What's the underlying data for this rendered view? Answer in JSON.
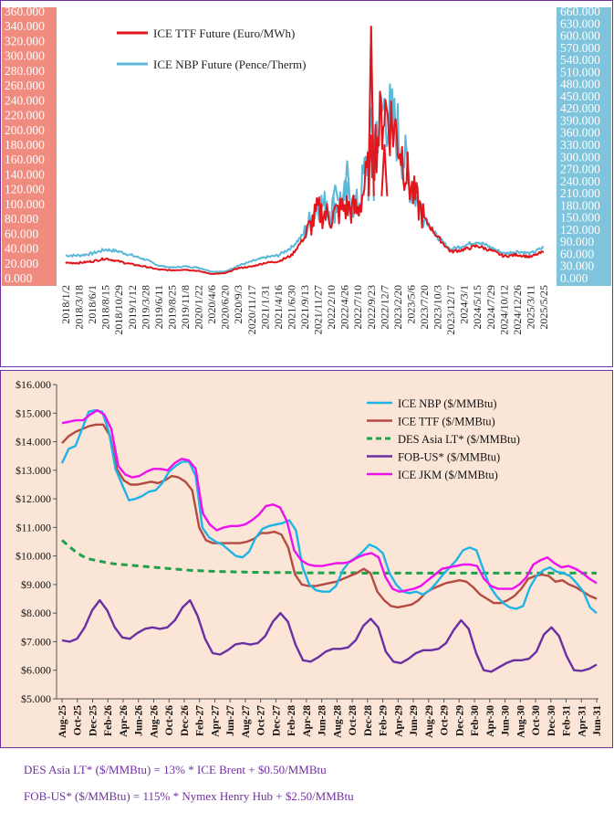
{
  "chart_data": [
    {
      "type": "line",
      "left_axis_ticks": [
        "360.000",
        "340.000",
        "320.000",
        "300.000",
        "280.000",
        "260.000",
        "240.000",
        "220.000",
        "200.000",
        "180.000",
        "160.000",
        "140.000",
        "120.000",
        "100.000",
        "80.000",
        "60.000",
        "40.000",
        "20.000",
        "0.000"
      ],
      "right_axis_ticks": [
        "660.000",
        "630.000",
        "600.000",
        "570.000",
        "540.000",
        "510.000",
        "480.000",
        "450.000",
        "420.000",
        "390.000",
        "360.000",
        "330.000",
        "300.000",
        "270.000",
        "240.000",
        "210.000",
        "180.000",
        "150.000",
        "120.000",
        "90.000",
        "60.000",
        "30.000",
        "0.000"
      ],
      "ylim_left": [
        0,
        360
      ],
      "ylim_right": [
        0,
        660
      ],
      "x_labels": [
        "2018/1/2",
        "2018/3/18",
        "2018/6/1",
        "2018/8/15",
        "2018/10/29",
        "2019/1/12",
        "2019/3/28",
        "2019/6/11",
        "2019/8/25",
        "2019/11/8",
        "2020/1/22",
        "2020/4/6",
        "2020/6/20",
        "2020/9/3",
        "2020/11/17",
        "2021/1/31",
        "2021/4/16",
        "2021/6/30",
        "2021/9/13",
        "2021/11/27",
        "2022/2/10",
        "2022/4/26",
        "2022/7/10",
        "2022/9/23",
        "2022/12/7",
        "2023/2/20",
        "2023/5/6",
        "2023/7/20",
        "2023/10/3",
        "2023/12/17",
        "2024/3/1",
        "2024/5/15",
        "2024/7/29",
        "2024/10/12",
        "2024/12/26",
        "2025/3/11",
        "2025/5/25"
      ],
      "series": [
        {
          "name": "ICE TTF Future (Euro/MWh)",
          "axis": "left",
          "color": "#e0161c",
          "points": [
            [
              0,
              20
            ],
            [
              1,
              20
            ],
            [
              2,
              22
            ],
            [
              3,
              26
            ],
            [
              4,
              22
            ],
            [
              5,
              18
            ],
            [
              6,
              15
            ],
            [
              7,
              11
            ],
            [
              8,
              10
            ],
            [
              9,
              11
            ],
            [
              10,
              9
            ],
            [
              11,
              5
            ],
            [
              12,
              6
            ],
            [
              13,
              13
            ],
            [
              14,
              15
            ],
            [
              15,
              20
            ],
            [
              16,
              22
            ],
            [
              17,
              30
            ],
            [
              18,
              55
            ],
            [
              19,
              90
            ],
            [
              20,
              82
            ],
            [
              21,
              95
            ],
            [
              22,
              90
            ],
            [
              23,
              155
            ],
            [
              24,
              230
            ],
            [
              25,
              190
            ],
            [
              26,
              120
            ],
            [
              27,
              80
            ],
            [
              28,
              55
            ],
            [
              29,
              35
            ],
            [
              30,
              38
            ],
            [
              31,
              43
            ],
            [
              32,
              37
            ],
            [
              33,
              29
            ],
            [
              34,
              31
            ],
            [
              35,
              28
            ],
            [
              36,
              35
            ]
          ]
        },
        {
          "name": "ICE NBP Future (Pence/Therm)",
          "axis": "right",
          "color": "#5cb8d8",
          "points": [
            [
              0,
              55
            ],
            [
              1,
              55
            ],
            [
              2,
              60
            ],
            [
              3,
              70
            ],
            [
              4,
              65
            ],
            [
              5,
              55
            ],
            [
              6,
              45
            ],
            [
              7,
              30
            ],
            [
              8,
              25
            ],
            [
              9,
              28
            ],
            [
              10,
              25
            ],
            [
              11,
              15
            ],
            [
              12,
              15
            ],
            [
              13,
              30
            ],
            [
              14,
              40
            ],
            [
              15,
              50
            ],
            [
              16,
              55
            ],
            [
              17,
              75
            ],
            [
              18,
              110
            ],
            [
              19,
              185
            ],
            [
              20,
              170
            ],
            [
              21,
              200
            ],
            [
              22,
              175
            ],
            [
              23,
              340
            ],
            [
              24,
              420
            ],
            [
              25,
              360
            ],
            [
              26,
              230
            ],
            [
              27,
              150
            ],
            [
              28,
              100
            ],
            [
              29,
              70
            ],
            [
              30,
              80
            ],
            [
              31,
              90
            ],
            [
              32,
              75
            ],
            [
              33,
              60
            ],
            [
              34,
              65
            ],
            [
              35,
              60
            ],
            [
              36,
              75
            ]
          ]
        }
      ],
      "legend": [
        "ICE TTF Future (Euro/MWh)",
        "ICE NBP Future (Pence/Therm)"
      ],
      "legend_placement": "top-left",
      "grid": false
    },
    {
      "type": "line",
      "y_ticks": [
        "$16.000",
        "$15.000",
        "$14.000",
        "$13.000",
        "$12.000",
        "$11.000",
        "$10.000",
        "$9.000",
        "$8.000",
        "$7.000",
        "$6.000",
        "$5.000"
      ],
      "ylim": [
        5,
        16
      ],
      "x_labels": [
        "Aug-25",
        "Oct-25",
        "Dec-25",
        "Feb-26",
        "Apr-26",
        "Jun-26",
        "Aug-26",
        "Oct-26",
        "Dec-26",
        "Feb-27",
        "Apr-27",
        "Jun-27",
        "Aug-27",
        "Oct-27",
        "Dec-27",
        "Feb-28",
        "Apr-28",
        "Jun-28",
        "Aug-28",
        "Oct-28",
        "Dec-28",
        "Feb-29",
        "Apr-29",
        "Jun-29",
        "Aug-29",
        "Oct-29",
        "Dec-29",
        "Feb-30",
        "Apr-30",
        "Jun-30",
        "Aug-30",
        "Oct-30",
        "Dec-30",
        "Feb-31",
        "Apr-31",
        "Jun-31"
      ],
      "series": [
        {
          "name": "ICE NBP ($/MMBtu)",
          "color": "#1fb4e6",
          "dash": false,
          "values": [
            13.25,
            13.75,
            13.85,
            14.45,
            15.05,
            15.1,
            15.05,
            14.35,
            13.05,
            12.5,
            11.95,
            12.0,
            12.1,
            12.25,
            12.3,
            12.55,
            12.95,
            13.15,
            13.3,
            13.3,
            12.8,
            11.0,
            10.65,
            10.5,
            10.4,
            10.2,
            10.0,
            9.95,
            10.15,
            10.65,
            10.95,
            11.05,
            11.1,
            11.15,
            11.25,
            10.9,
            9.6,
            9.0,
            8.8,
            8.75,
            8.75,
            8.95,
            9.5,
            9.8,
            9.95,
            10.15,
            10.4,
            10.3,
            10.1,
            9.4,
            9.0,
            8.75,
            8.7,
            8.75,
            8.65,
            8.8,
            9.05,
            9.35,
            9.6,
            9.85,
            10.2,
            10.3,
            10.2,
            9.55,
            8.95,
            8.6,
            8.35,
            8.2,
            8.15,
            8.25,
            8.9,
            9.3,
            9.5,
            9.6,
            9.45,
            9.4,
            9.3,
            9.05,
            8.75,
            8.2,
            8.0
          ]
        },
        {
          "name": "ICE TTF ($/MMBtu)",
          "color": "#b54a40",
          "dash": false,
          "values": [
            13.95,
            14.2,
            14.35,
            14.45,
            14.55,
            14.6,
            14.6,
            14.2,
            13.05,
            12.65,
            12.5,
            12.5,
            12.55,
            12.6,
            12.55,
            12.65,
            12.8,
            12.75,
            12.6,
            12.3,
            11.0,
            10.55,
            10.45,
            10.45,
            10.45,
            10.45,
            10.45,
            10.5,
            10.6,
            10.8,
            10.8,
            10.85,
            10.75,
            10.3,
            9.35,
            9.0,
            8.95,
            8.95,
            9.0,
            9.05,
            9.1,
            9.2,
            9.3,
            9.4,
            9.55,
            9.4,
            8.75,
            8.45,
            8.25,
            8.2,
            8.25,
            8.3,
            8.45,
            8.7,
            8.85,
            8.95,
            9.05,
            9.1,
            9.15,
            9.1,
            8.9,
            8.65,
            8.5,
            8.35,
            8.35,
            8.45,
            8.6,
            8.85,
            9.2,
            9.3,
            9.35,
            9.3,
            9.1,
            9.15,
            9.0,
            8.9,
            8.75,
            8.6,
            8.5
          ]
        },
        {
          "name": "DES Asia LT* ($/MMBtu)",
          "color": "#1fa04a",
          "dash": true,
          "values": [
            10.55,
            10.35,
            10.15,
            10.0,
            9.9,
            9.85,
            9.8,
            9.75,
            9.72,
            9.7,
            9.68,
            9.66,
            9.64,
            9.62,
            9.6,
            9.58,
            9.56,
            9.54,
            9.52,
            9.5,
            9.49,
            9.48,
            9.47,
            9.46,
            9.45,
            9.45,
            9.44,
            9.44,
            9.43,
            9.43,
            9.43,
            9.42,
            9.42,
            9.42,
            9.42,
            9.41,
            9.41,
            9.41,
            9.41,
            9.41,
            9.41,
            9.41,
            9.41,
            9.41,
            9.41,
            9.4,
            9.4,
            9.4,
            9.4,
            9.4,
            9.4,
            9.4,
            9.4,
            9.4,
            9.4,
            9.4,
            9.4,
            9.4,
            9.4,
            9.4,
            9.4,
            9.4,
            9.4,
            9.4,
            9.4,
            9.4,
            9.4,
            9.4,
            9.4,
            9.4,
            9.4,
            9.4,
            9.4,
            9.4,
            9.4,
            9.4,
            9.4,
            9.4,
            9.4,
            9.4,
            9.4
          ]
        },
        {
          "name": "FOB-US* ($/MMBtu)",
          "color": "#6a2fa3",
          "dash": false,
          "values": [
            7.05,
            7.0,
            7.1,
            7.5,
            8.1,
            8.45,
            8.1,
            7.5,
            7.15,
            7.1,
            7.3,
            7.45,
            7.5,
            7.45,
            7.5,
            7.75,
            8.2,
            8.45,
            7.9,
            7.1,
            6.6,
            6.55,
            6.7,
            6.9,
            6.95,
            6.9,
            6.95,
            7.2,
            7.7,
            8.0,
            7.7,
            6.9,
            6.35,
            6.3,
            6.45,
            6.65,
            6.75,
            6.75,
            6.8,
            7.05,
            7.55,
            7.8,
            7.5,
            6.65,
            6.3,
            6.25,
            6.4,
            6.6,
            6.7,
            6.7,
            6.75,
            6.95,
            7.4,
            7.75,
            7.45,
            6.6,
            6.0,
            5.95,
            6.1,
            6.25,
            6.35,
            6.35,
            6.4,
            6.65,
            7.25,
            7.5,
            7.2,
            6.5,
            6.0,
            5.98,
            6.05,
            6.2
          ]
        },
        {
          "name": "ICE JKM ($/MMBtu)",
          "color": "#ee10ee",
          "dash": false,
          "values": [
            14.65,
            14.7,
            14.75,
            14.75,
            14.95,
            15.1,
            14.95,
            14.45,
            13.15,
            12.85,
            12.75,
            12.8,
            12.95,
            13.05,
            13.05,
            13.0,
            13.25,
            13.4,
            13.35,
            13.05,
            11.5,
            11.1,
            10.9,
            11.0,
            11.05,
            11.05,
            11.1,
            11.25,
            11.45,
            11.75,
            11.8,
            11.7,
            11.2,
            10.2,
            9.85,
            9.7,
            9.65,
            9.65,
            9.7,
            9.75,
            9.75,
            9.8,
            9.95,
            10.05,
            10.1,
            9.95,
            9.25,
            8.85,
            8.75,
            8.8,
            8.85,
            8.95,
            9.15,
            9.35,
            9.55,
            9.6,
            9.65,
            9.7,
            9.7,
            9.65,
            9.2,
            8.95,
            8.85,
            8.85,
            8.85,
            9.0,
            9.25,
            9.7,
            9.85,
            9.95,
            9.75,
            9.6,
            9.65,
            9.55,
            9.4,
            9.2,
            9.05
          ]
        }
      ],
      "legend": [
        "ICE NBP ($/MMBtu)",
        "ICE TTF ($/MMBtu)",
        "DES Asia LT* ($/MMBtu)",
        "FOB-US* ($/MMBtu)",
        "ICE JKM ($/MMBtu)"
      ],
      "legend_placement": "top-right",
      "grid": false
    }
  ],
  "footnotes": [
    "DES Asia LT* ($/MMBtu) = 13% * ICE Brent + $0.50/MMBtu",
    "FOB-US* ($/MMBtu) = 115% * Nymex Henry Hub + $2.50/MMBtu"
  ]
}
